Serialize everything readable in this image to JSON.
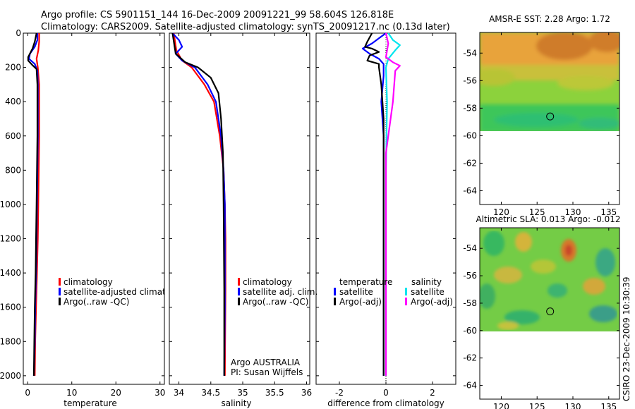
{
  "title": {
    "line1": "Argo profile: CS 5901151_144 16-Dec-2009 20091221_99 58.604S 126.818E",
    "line2": "Climatology: CARS2009. Satellite-adjusted climatology: synTS_20091217.nc (0.13d later)"
  },
  "colors": {
    "red": "#ff0000",
    "blue": "#0000ff",
    "black": "#000000",
    "cyan": "#00e5ee",
    "magenta": "#ff00ff"
  },
  "chart_data": [
    {
      "type": "line",
      "name": "temperature-profile",
      "xlabel": "temperature",
      "xlim": [
        -1,
        31
      ],
      "ylim": [
        0,
        2050
      ],
      "y_reversed": true,
      "xticks": [
        0,
        10,
        20,
        30
      ],
      "yticks": [
        0,
        200,
        400,
        600,
        800,
        1000,
        1200,
        1400,
        1600,
        1800,
        2000
      ],
      "legend": [
        "climatology",
        "satellite-adjusted climatolog",
        "Argo(..raw -QC)"
      ],
      "series": [
        {
          "name": "climatology",
          "color": "red",
          "points": [
            [
              2.6,
              0
            ],
            [
              2.6,
              50
            ],
            [
              2.4,
              100
            ],
            [
              2.0,
              150
            ],
            [
              2.3,
              200
            ],
            [
              2.6,
              300
            ],
            [
              2.6,
              400
            ],
            [
              2.6,
              600
            ],
            [
              2.5,
              800
            ],
            [
              2.4,
              1000
            ],
            [
              2.3,
              1200
            ],
            [
              2.1,
              1400
            ],
            [
              1.9,
              1600
            ],
            [
              1.7,
              1800
            ],
            [
              1.6,
              2000
            ]
          ]
        },
        {
          "name": "satellite-adjusted climatology",
          "color": "blue",
          "points": [
            [
              2.2,
              0
            ],
            [
              2.2,
              40
            ],
            [
              1.6,
              80
            ],
            [
              0.5,
              120
            ],
            [
              0.3,
              150
            ],
            [
              1.6,
              180
            ],
            [
              2.2,
              220
            ],
            [
              2.3,
              300
            ],
            [
              2.3,
              400
            ],
            [
              2.3,
              600
            ],
            [
              2.2,
              800
            ],
            [
              2.1,
              1000
            ],
            [
              2.0,
              1200
            ],
            [
              1.9,
              1400
            ],
            [
              1.7,
              1600
            ],
            [
              1.6,
              1800
            ],
            [
              1.4,
              2000
            ]
          ]
        },
        {
          "name": "Argo(..raw -QC)",
          "color": "black",
          "points": [
            [
              2.0,
              0
            ],
            [
              1.6,
              50
            ],
            [
              1.1,
              90
            ],
            [
              0.1,
              140
            ],
            [
              0.1,
              160
            ],
            [
              1.0,
              185
            ],
            [
              2.0,
              210
            ],
            [
              2.2,
              300
            ],
            [
              2.2,
              400
            ],
            [
              2.2,
              600
            ],
            [
              2.1,
              800
            ],
            [
              2.0,
              1000
            ],
            [
              1.9,
              1200
            ],
            [
              1.8,
              1400
            ],
            [
              1.6,
              1600
            ],
            [
              1.5,
              1800
            ],
            [
              1.4,
              2000
            ]
          ]
        }
      ]
    },
    {
      "type": "line",
      "name": "salinity-profile",
      "xlabel": "salinity",
      "xlim": [
        33.85,
        36.05
      ],
      "ylim": [
        0,
        2050
      ],
      "y_reversed": true,
      "xticks": [
        34,
        34.5,
        35,
        35.5,
        36
      ],
      "legend": [
        "climatology",
        "satellite adj. clim.",
        "Argo(..raw -QC)"
      ],
      "annotation": [
        "Argo AUSTRALIA",
        "PI: Susan Wijffels"
      ],
      "series": [
        {
          "name": "climatology",
          "color": "red",
          "points": [
            [
              33.92,
              0
            ],
            [
              33.96,
              100
            ],
            [
              34.05,
              160
            ],
            [
              34.2,
              200
            ],
            [
              34.4,
              300
            ],
            [
              34.55,
              400
            ],
            [
              34.64,
              600
            ],
            [
              34.7,
              800
            ],
            [
              34.72,
              1000
            ],
            [
              34.73,
              1200
            ],
            [
              34.73,
              1500
            ],
            [
              34.72,
              2000
            ]
          ]
        },
        {
          "name": "satellite adj. clim.",
          "color": "blue",
          "points": [
            [
              33.9,
              0
            ],
            [
              34.0,
              40
            ],
            [
              34.05,
              80
            ],
            [
              33.95,
              120
            ],
            [
              34.05,
              160
            ],
            [
              34.25,
              200
            ],
            [
              34.45,
              300
            ],
            [
              34.58,
              400
            ],
            [
              34.66,
              600
            ],
            [
              34.7,
              800
            ],
            [
              34.72,
              1000
            ],
            [
              34.72,
              1300
            ],
            [
              34.72,
              1600
            ],
            [
              34.71,
              2000
            ]
          ]
        },
        {
          "name": "Argo(..raw -QC)",
          "color": "black",
          "points": [
            [
              33.9,
              0
            ],
            [
              33.95,
              120
            ],
            [
              34.1,
              170
            ],
            [
              34.3,
              200
            ],
            [
              34.5,
              260
            ],
            [
              34.62,
              350
            ],
            [
              34.66,
              500
            ],
            [
              34.69,
              700
            ],
            [
              34.7,
              1000
            ],
            [
              34.71,
              1500
            ],
            [
              34.71,
              2000
            ]
          ]
        }
      ]
    },
    {
      "type": "line",
      "name": "difference-profile",
      "xlabel": "difference from climatology",
      "xlim": [
        -3,
        3
      ],
      "ylim": [
        0,
        2050
      ],
      "y_reversed": true,
      "xticks": [
        -2,
        0,
        2
      ],
      "legend_temperature": {
        "header": "temperature",
        "items": [
          "satellite",
          "Argo(-adj)"
        ]
      },
      "legend_salinity": {
        "header": "salinity",
        "items": [
          "satellite",
          "Argo(-adj)"
        ]
      },
      "series": [
        {
          "name": "temperature satellite",
          "color": "blue",
          "points": [
            [
              0.0,
              0
            ],
            [
              -0.3,
              30
            ],
            [
              -0.6,
              60
            ],
            [
              -1.0,
              90
            ],
            [
              -0.7,
              120
            ],
            [
              -0.3,
              150
            ],
            [
              -0.1,
              180
            ],
            [
              -0.1,
              250
            ],
            [
              -0.2,
              400
            ],
            [
              -0.1,
              600
            ],
            [
              -0.1,
              800
            ],
            [
              -0.1,
              1000
            ],
            [
              -0.1,
              1500
            ],
            [
              -0.1,
              2000
            ]
          ]
        },
        {
          "name": "temperature Argo(-adj)",
          "color": "black",
          "points": [
            [
              -0.6,
              0
            ],
            [
              -0.8,
              50
            ],
            [
              -0.9,
              80
            ],
            [
              -0.6,
              90
            ],
            [
              -0.3,
              110
            ],
            [
              -0.7,
              130
            ],
            [
              -0.8,
              160
            ],
            [
              -0.3,
              180
            ],
            [
              -0.3,
              200
            ],
            [
              -0.2,
              300
            ],
            [
              -0.1,
              500
            ],
            [
              -0.1,
              800
            ],
            [
              -0.1,
              1000
            ],
            [
              -0.1,
              1500
            ],
            [
              -0.1,
              2000
            ]
          ]
        },
        {
          "name": "salinity satellite",
          "color": "cyan",
          "points": [
            [
              0.1,
              0
            ],
            [
              0.3,
              40
            ],
            [
              0.6,
              70
            ],
            [
              0.4,
              100
            ],
            [
              0.1,
              150
            ],
            [
              0.0,
              200
            ],
            [
              0.05,
              400
            ],
            [
              0.0,
              800
            ],
            [
              0.0,
              1200
            ],
            [
              0.0,
              1600
            ],
            [
              0.0,
              2000
            ]
          ]
        },
        {
          "name": "salinity Argo(-adj)",
          "color": "magenta",
          "points": [
            [
              0.0,
              0
            ],
            [
              0.1,
              60
            ],
            [
              0.0,
              140
            ],
            [
              0.3,
              170
            ],
            [
              0.6,
              190
            ],
            [
              0.4,
              220
            ],
            [
              0.3,
              400
            ],
            [
              0.2,
              500
            ],
            [
              0.0,
              700
            ],
            [
              0.0,
              1000
            ],
            [
              0.0,
              1500
            ],
            [
              0.0,
              2000
            ]
          ]
        }
      ]
    },
    {
      "type": "heatmap",
      "name": "amsr-e-sst-map",
      "title": "AMSR-E SST: 2.28 Argo: 1.72",
      "xlim": [
        117,
        136.5
      ],
      "ylim": [
        -65,
        -52.5
      ],
      "xticks": [
        120,
        125,
        130,
        135
      ],
      "yticks": [
        -54,
        -56,
        -58,
        -60,
        -62,
        -64
      ],
      "data_extent_lat": [
        -60,
        -52.5
      ],
      "argo_position": [
        126.818,
        -58.604
      ]
    },
    {
      "type": "heatmap",
      "name": "altimetric-sla-map",
      "title": "Altimetric SLA: 0.013 Argo: -0.012",
      "xlim": [
        117,
        136.5
      ],
      "ylim": [
        -65,
        -52.5
      ],
      "xticks": [
        120,
        125,
        130,
        135
      ],
      "yticks": [
        -54,
        -56,
        -58,
        -60,
        -62,
        -64
      ],
      "data_extent_lat": [
        -60,
        -52.5
      ],
      "argo_position": [
        126.818,
        -58.604
      ]
    }
  ],
  "footer_stamp": "CSIRO 23-Dec-2009 10:30:39"
}
